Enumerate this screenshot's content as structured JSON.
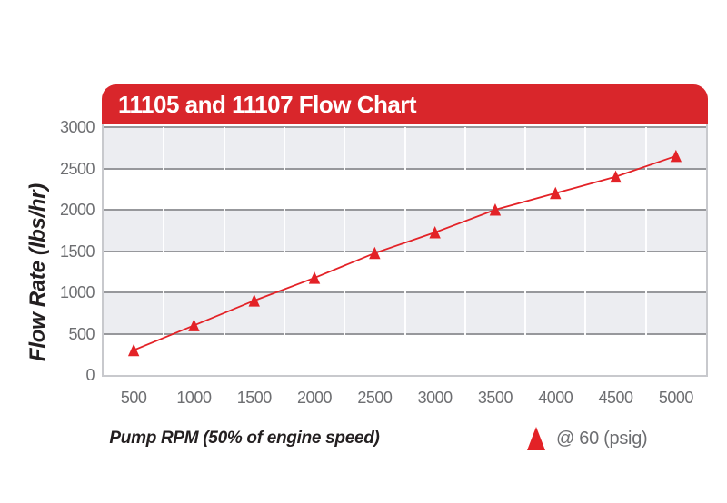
{
  "title": "11105 and 11107 Flow Chart",
  "colors": {
    "header_red": "#d9262b",
    "line_red": "#e32227",
    "band_gray": "#ecedf1",
    "gridline_gray": "#97989c",
    "plot_border": "#c8c9cd",
    "tick_text": "#6d6e71",
    "ink": "#231f20"
  },
  "legend": {
    "marker": "triangle-up-red"
  },
  "chart_data": {
    "type": "line",
    "title": "11105 and 11107 Flow Chart",
    "xlabel": "Pump RPM (50% of engine speed)",
    "ylabel": "Flow Rate (lbs/hr)",
    "x": [
      500,
      1000,
      1500,
      2000,
      2500,
      3000,
      3500,
      4000,
      4500,
      5000
    ],
    "series": [
      {
        "name": "@ 60 (psig)",
        "marker": "triangle-up",
        "values": [
          300,
          600,
          900,
          1175,
          1475,
          1725,
          2000,
          2200,
          2400,
          2650
        ]
      }
    ],
    "ylim": [
      0,
      3000
    ],
    "y_ticks": [
      0,
      500,
      1000,
      1500,
      2000,
      2500,
      3000
    ],
    "grid": "horizontal-major",
    "banded_background": true,
    "legend_position": "bottom-right"
  }
}
